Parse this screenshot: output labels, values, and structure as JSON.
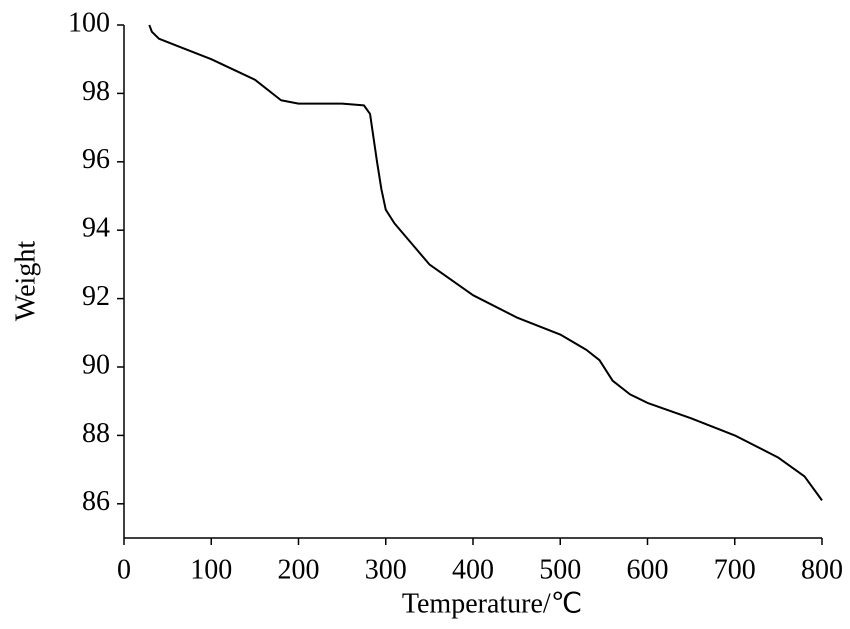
{
  "chart_data": {
    "type": "line",
    "x_label": "Temperature/℃",
    "y_label": "Weight",
    "x": [
      29,
      32,
      40,
      60,
      100,
      150,
      180,
      200,
      250,
      275,
      282,
      290,
      295,
      300,
      310,
      330,
      350,
      400,
      450,
      500,
      530,
      545,
      560,
      580,
      600,
      650,
      700,
      750,
      780,
      800
    ],
    "series": [
      {
        "color": "#000000",
        "values": [
          100.0,
          99.8,
          99.6,
          99.4,
          99.0,
          98.4,
          97.8,
          97.7,
          97.7,
          97.65,
          97.4,
          96.0,
          95.2,
          94.6,
          94.2,
          93.6,
          93.0,
          92.1,
          91.45,
          90.95,
          90.5,
          90.2,
          89.6,
          89.2,
          88.95,
          88.5,
          88.0,
          87.35,
          86.8,
          86.1
        ]
      }
    ],
    "xlim": [
      0,
      800
    ],
    "xticks": [
      0,
      100,
      200,
      300,
      400,
      500,
      600,
      700,
      800
    ],
    "ylim": [
      85,
      100
    ],
    "yticks": [
      86,
      88,
      90,
      92,
      94,
      96,
      98,
      100
    ],
    "grid": false
  }
}
